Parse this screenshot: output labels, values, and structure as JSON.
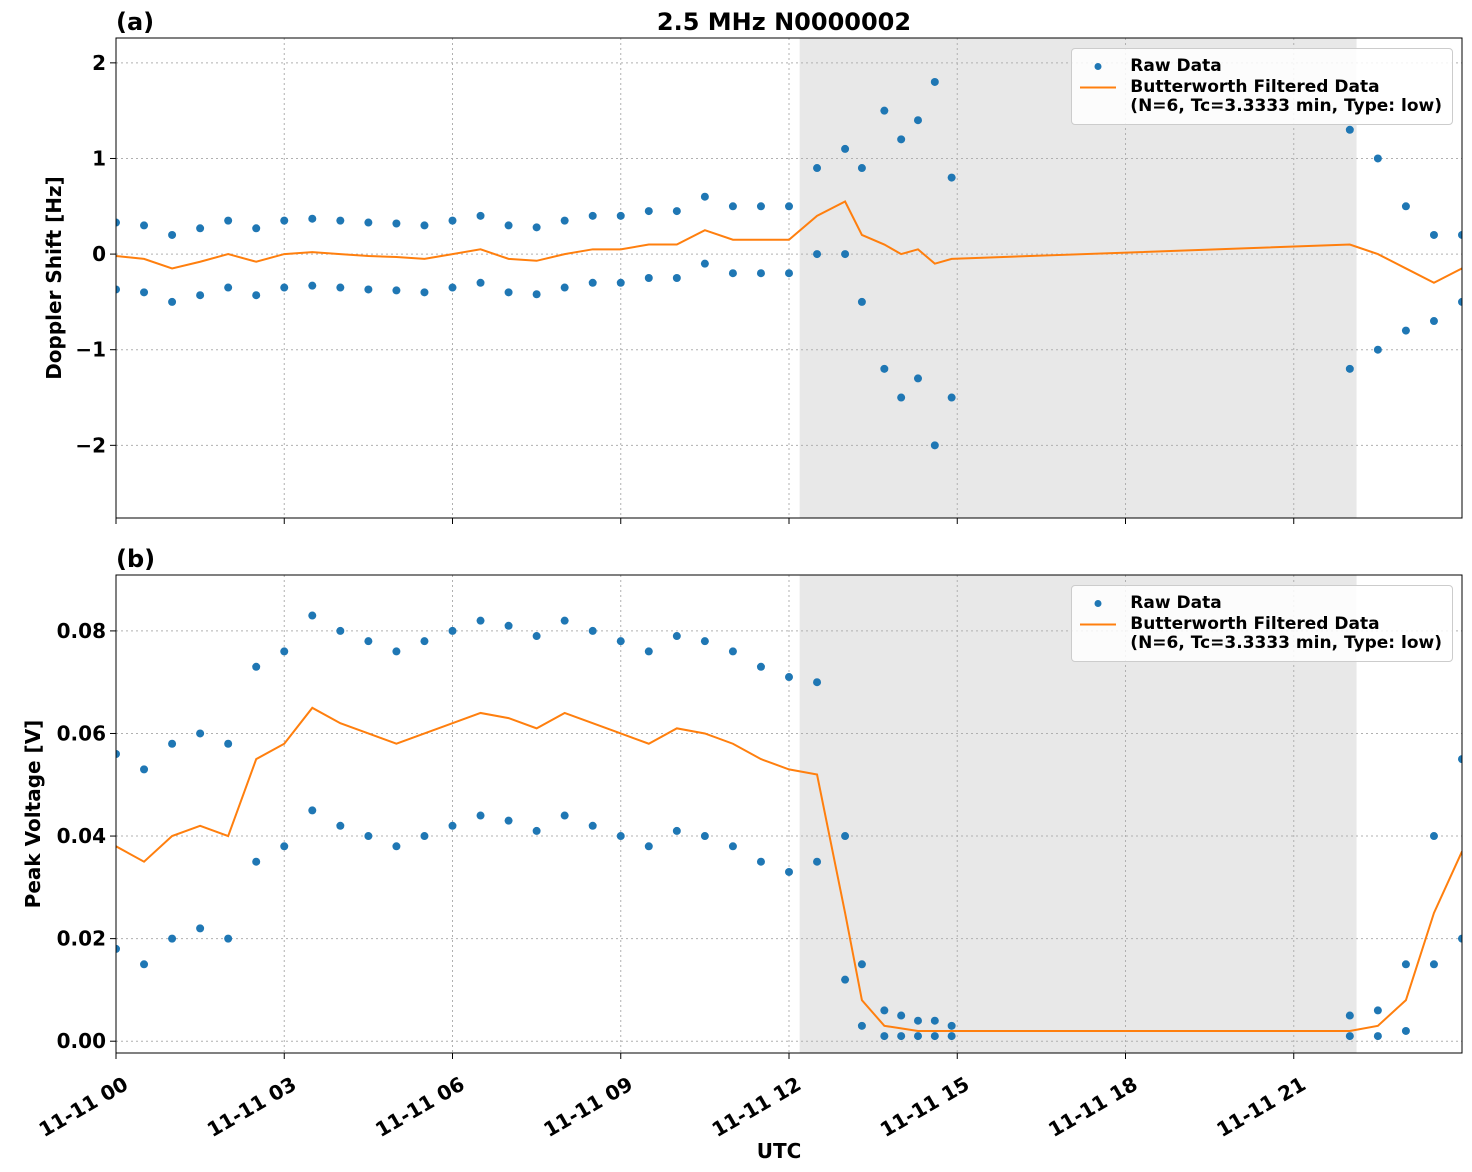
{
  "chart_data": [
    {
      "type": "scatter",
      "title": "2.5 MHz N0000002",
      "panel_label": "(a)",
      "ylabel": "Doppler Shift [Hz]",
      "xlim": [
        0,
        24
      ],
      "xticks": [
        0,
        3,
        6,
        9,
        12,
        15,
        18,
        21
      ],
      "ylim": [
        -2.76,
        2.26
      ],
      "yticks": [
        {
          "value": -2,
          "label": "−2"
        },
        {
          "value": -1,
          "label": "−1"
        },
        0,
        1,
        2
      ],
      "grid": true,
      "shade": [
        12.19,
        22.12
      ],
      "legend": "upper right",
      "series": [
        {
          "name": "Raw Data",
          "color": "#1f77b4",
          "kind": "points",
          "x": [
            0,
            0.5,
            1,
            1.5,
            2,
            2.5,
            3,
            3.5,
            4,
            4.5,
            5,
            5.5,
            6,
            6.5,
            7,
            7.5,
            8,
            8.5,
            9,
            9.5,
            10,
            10.5,
            11,
            11.5,
            12,
            12.5,
            13,
            13.3,
            13.7,
            14,
            14.3,
            14.6,
            14.9,
            22,
            22.5,
            23,
            23.5,
            24,
            0,
            0.5,
            1,
            1.5,
            2,
            2.5,
            3,
            3.5,
            4,
            4.5,
            5,
            5.5,
            6,
            6.5,
            7,
            7.5,
            8,
            8.5,
            9,
            9.5,
            10,
            10.5,
            11,
            11.5,
            12,
            12.5,
            13,
            13.3,
            13.7,
            14,
            14.3,
            14.6,
            14.9,
            22,
            22.5,
            23,
            23.5,
            24
          ],
          "values": [
            0.33,
            0.3,
            0.2,
            0.27,
            0.35,
            0.27,
            0.35,
            0.37,
            0.35,
            0.33,
            0.32,
            0.3,
            0.35,
            0.4,
            0.3,
            0.28,
            0.35,
            0.4,
            0.4,
            0.45,
            0.45,
            0.6,
            0.5,
            0.5,
            0.5,
            0.9,
            1.1,
            0.9,
            1.5,
            1.2,
            1.4,
            1.8,
            0.8,
            1.3,
            1.0,
            0.5,
            0.2,
            0.2,
            -0.37,
            -0.4,
            -0.5,
            -0.43,
            -0.35,
            -0.43,
            -0.35,
            -0.33,
            -0.35,
            -0.37,
            -0.38,
            -0.4,
            -0.35,
            -0.3,
            -0.4,
            -0.42,
            -0.35,
            -0.3,
            -0.3,
            -0.25,
            -0.25,
            -0.1,
            -0.2,
            -0.2,
            -0.2,
            0.0,
            0.0,
            -0.5,
            -1.2,
            -1.5,
            -1.3,
            -2.0,
            -1.5,
            -1.2,
            -1.0,
            -0.8,
            -0.7,
            -0.5
          ]
        },
        {
          "name": "Butterworth Filtered Data\n(N=6, Tc=3.3333 min, Type: low)",
          "color": "#ff7f0e",
          "kind": "line",
          "x": [
            0,
            0.5,
            1,
            1.5,
            2,
            2.5,
            3,
            3.5,
            4,
            4.5,
            5,
            5.5,
            6,
            6.5,
            7,
            7.5,
            8,
            8.5,
            9,
            9.5,
            10,
            10.5,
            11,
            11.5,
            12,
            12.5,
            13,
            13.3,
            13.7,
            14,
            14.3,
            14.6,
            14.9,
            22,
            22.5,
            23,
            23.5,
            24
          ],
          "values": [
            -0.02,
            -0.05,
            -0.15,
            -0.08,
            0.0,
            -0.08,
            0.0,
            0.02,
            0.0,
            -0.02,
            -0.03,
            -0.05,
            0.0,
            0.05,
            -0.05,
            -0.07,
            0.0,
            0.05,
            0.05,
            0.1,
            0.1,
            0.25,
            0.15,
            0.15,
            0.15,
            0.4,
            0.55,
            0.2,
            0.1,
            0.0,
            0.05,
            -0.1,
            -0.05,
            0.1,
            0.0,
            -0.15,
            -0.3,
            -0.15
          ]
        }
      ]
    },
    {
      "type": "scatter",
      "panel_label": "(b)",
      "ylabel": "Peak Voltage [V]",
      "xlabel": "UTC",
      "xlim": [
        0,
        24
      ],
      "xticks": [
        {
          "value": 0,
          "label": "11-11 00"
        },
        {
          "value": 3,
          "label": "11-11 03"
        },
        {
          "value": 6,
          "label": "11-11 06"
        },
        {
          "value": 9,
          "label": "11-11 09"
        },
        {
          "value": 12,
          "label": "11-11 12"
        },
        {
          "value": 15,
          "label": "11-11 15"
        },
        {
          "value": 18,
          "label": "11-11 18"
        },
        {
          "value": 21,
          "label": "11-11 21"
        }
      ],
      "ylim": [
        -0.0023,
        0.0909
      ],
      "yticks": [
        {
          "value": 0,
          "label": "0.00"
        },
        0.02,
        0.04,
        0.06,
        0.08
      ],
      "grid": true,
      "shade": [
        12.19,
        22.12
      ],
      "legend": "upper right",
      "series": [
        {
          "name": "Raw Data",
          "color": "#1f77b4",
          "kind": "points",
          "x": [
            0,
            0.5,
            1,
            1.5,
            2,
            2.5,
            3,
            3.5,
            4,
            4.5,
            5,
            5.5,
            6,
            6.5,
            7,
            7.5,
            8,
            8.5,
            9,
            9.5,
            10,
            10.5,
            11,
            11.5,
            12,
            12.5,
            13,
            13.3,
            13.7,
            14,
            14.3,
            14.6,
            14.9,
            22,
            22.5,
            23,
            23.5,
            24,
            0,
            0.5,
            1,
            1.5,
            2,
            2.5,
            3,
            3.5,
            4,
            4.5,
            5,
            5.5,
            6,
            6.5,
            7,
            7.5,
            8,
            8.5,
            9,
            9.5,
            10,
            10.5,
            11,
            11.5,
            12,
            12.5,
            13,
            13.3,
            13.7,
            14,
            14.3,
            14.6,
            14.9,
            22,
            22.5,
            23,
            23.5,
            24
          ],
          "values": [
            0.056,
            0.053,
            0.058,
            0.06,
            0.058,
            0.073,
            0.076,
            0.083,
            0.08,
            0.078,
            0.076,
            0.078,
            0.08,
            0.082,
            0.081,
            0.079,
            0.082,
            0.08,
            0.078,
            0.076,
            0.079,
            0.078,
            0.076,
            0.073,
            0.071,
            0.07,
            0.04,
            0.015,
            0.006,
            0.005,
            0.004,
            0.004,
            0.003,
            0.005,
            0.006,
            0.015,
            0.04,
            0.055,
            0.018,
            0.015,
            0.02,
            0.022,
            0.02,
            0.035,
            0.038,
            0.045,
            0.042,
            0.04,
            0.038,
            0.04,
            0.042,
            0.044,
            0.043,
            0.041,
            0.044,
            0.042,
            0.04,
            0.038,
            0.041,
            0.04,
            0.038,
            0.035,
            0.033,
            0.035,
            0.012,
            0.003,
            0.001,
            0.001,
            0.001,
            0.001,
            0.001,
            0.001,
            0.001,
            0.002,
            0.015,
            0.02
          ]
        },
        {
          "name": "Butterworth Filtered Data\n(N=6, Tc=3.3333 min, Type: low)",
          "color": "#ff7f0e",
          "kind": "line",
          "x": [
            0,
            0.5,
            1,
            1.5,
            2,
            2.5,
            3,
            3.5,
            4,
            4.5,
            5,
            5.5,
            6,
            6.5,
            7,
            7.5,
            8,
            8.5,
            9,
            9.5,
            10,
            10.5,
            11,
            11.5,
            12,
            12.5,
            13,
            13.3,
            13.7,
            14,
            14.3,
            14.6,
            14.9,
            22,
            22.5,
            23,
            23.5,
            24
          ],
          "values": [
            0.038,
            0.035,
            0.04,
            0.042,
            0.04,
            0.055,
            0.058,
            0.065,
            0.062,
            0.06,
            0.058,
            0.06,
            0.062,
            0.064,
            0.063,
            0.061,
            0.064,
            0.062,
            0.06,
            0.058,
            0.061,
            0.06,
            0.058,
            0.055,
            0.053,
            0.052,
            0.025,
            0.008,
            0.003,
            0.0025,
            0.002,
            0.002,
            0.002,
            0.002,
            0.003,
            0.008,
            0.025,
            0.037
          ]
        }
      ]
    }
  ]
}
